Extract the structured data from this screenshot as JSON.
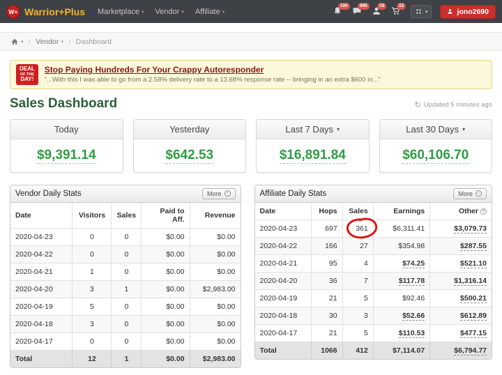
{
  "colors": {
    "navbar_bg": "#3e4146",
    "brand_yellow": "#f3b32a",
    "logo_red": "#c42222",
    "accent_red": "#c9302c",
    "money_green": "#2e9e41",
    "heading_green": "#2d5e3a",
    "banner_bg": "#fcf8dc",
    "annotation_red": "#dd1515"
  },
  "navbar": {
    "logo_text": "W+",
    "brand": "Warrior+Plus",
    "menu": [
      {
        "label": "Marketplace"
      },
      {
        "label": "Vendor"
      },
      {
        "label": "Affiliate"
      }
    ],
    "notifications": [
      {
        "name": "bell",
        "count": "100"
      },
      {
        "name": "messages",
        "count": "999"
      },
      {
        "name": "affiliates",
        "count": "19"
      },
      {
        "name": "cart",
        "count": "22"
      }
    ],
    "username": "jono2690"
  },
  "breadcrumb": {
    "items": [
      "Vendor",
      "Dashboard"
    ]
  },
  "deal_banner": {
    "badge": [
      "DEAL",
      "OF THE",
      "DAY!"
    ],
    "title": "Stop Paying Hundreds For Your Crappy Autoresponder",
    "subtitle": "\"...With this I was able to go from a 2.58% delivery rate to a 13.68% response rate -- bringing in an extra $600 in...\""
  },
  "page": {
    "title": "Sales Dashboard",
    "updated": "Updated 5 minutes ago"
  },
  "stat_cards": [
    {
      "label": "Today",
      "value": "$9,391.14",
      "dropdown": false
    },
    {
      "label": "Yesterday",
      "value": "$642.53",
      "dropdown": false
    },
    {
      "label": "Last 7 Days",
      "value": "$16,891.84",
      "dropdown": true
    },
    {
      "label": "Last 30 Days",
      "value": "$60,106.70",
      "dropdown": true
    }
  ],
  "vendor_table": {
    "title": "Vendor Daily Stats",
    "more_label": "More",
    "columns": [
      "Date",
      "Visitors",
      "Sales",
      "Paid to Aff.",
      "Revenue"
    ],
    "rows": [
      [
        "2020-04-23",
        "0",
        "0",
        "$0.00",
        "$0.00"
      ],
      [
        "2020-04-22",
        "0",
        "0",
        "$0.00",
        "$0.00"
      ],
      [
        "2020-04-21",
        "1",
        "0",
        "$0.00",
        "$0.00"
      ],
      [
        "2020-04-20",
        "3",
        "1",
        "$0.00",
        "$2,983.00"
      ],
      [
        "2020-04-19",
        "5",
        "0",
        "$0.00",
        "$0.00"
      ],
      [
        "2020-04-18",
        "3",
        "0",
        "$0.00",
        "$0.00"
      ],
      [
        "2020-04-17",
        "0",
        "0",
        "$0.00",
        "$0.00"
      ]
    ],
    "total": [
      "Total",
      "12",
      "1",
      "$0.00",
      "$2,983.00"
    ]
  },
  "affiliate_table": {
    "title": "Affiliate Daily Stats",
    "more_label": "More",
    "columns": [
      "Date",
      "Hops",
      "Sales",
      "Earnings",
      "Other"
    ],
    "rows": [
      [
        "2020-04-23",
        "697",
        "361",
        "$6,311.41",
        "$3,079.73"
      ],
      [
        "2020-04-22",
        "166",
        "27",
        "$354.98",
        "$287.55"
      ],
      [
        "2020-04-21",
        "95",
        "4",
        "$74.25",
        "$521.10"
      ],
      [
        "2020-04-20",
        "36",
        "7",
        "$117.78",
        "$1,316.14"
      ],
      [
        "2020-04-19",
        "21",
        "5",
        "$92.46",
        "$500.21"
      ],
      [
        "2020-04-18",
        "30",
        "3",
        "$52.66",
        "$612.89"
      ],
      [
        "2020-04-17",
        "21",
        "5",
        "$110.53",
        "$477.15"
      ]
    ],
    "earnings_link": [
      false,
      false,
      true,
      true,
      false,
      true,
      true
    ],
    "total": [
      "Total",
      "1066",
      "412",
      "$7,114.07",
      "$6,794.77"
    ],
    "annotation": {
      "row": 0,
      "col": 2,
      "type": "red-circle"
    }
  }
}
